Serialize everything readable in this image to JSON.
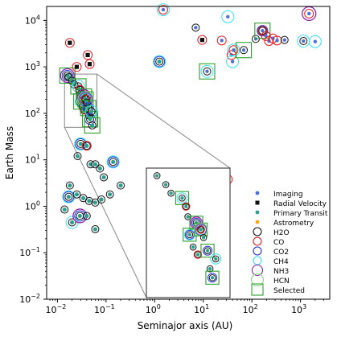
{
  "chart_data": {
    "type": "scatter",
    "title": "",
    "xlabel": "Seminajor axis (AU)",
    "ylabel": "Earth Mass",
    "x_scale": "log",
    "y_scale": "log",
    "xlim": [
      0.006,
      4000
    ],
    "ylim": [
      0.01,
      20000
    ],
    "x_ticks": [
      {
        "value": 0.01,
        "label": "10",
        "exp": "−2"
      },
      {
        "value": 0.1,
        "label": "10",
        "exp": "−1"
      },
      {
        "value": 1,
        "label": "10",
        "exp": "0"
      },
      {
        "value": 10,
        "label": "10",
        "exp": "1"
      },
      {
        "value": 100,
        "label": "10",
        "exp": "2"
      },
      {
        "value": 1000,
        "label": "10",
        "exp": "3"
      }
    ],
    "y_ticks": [
      {
        "value": 0.01,
        "label": "10",
        "exp": "−2"
      },
      {
        "value": 0.1,
        "label": "10",
        "exp": "−1"
      },
      {
        "value": 1,
        "label": "10",
        "exp": "0"
      },
      {
        "value": 10,
        "label": "10",
        "exp": "1"
      },
      {
        "value": 100,
        "label": "10",
        "exp": "2"
      },
      {
        "value": 1000,
        "label": "10",
        "exp": "3"
      },
      {
        "value": 10000,
        "label": "10",
        "exp": "4"
      }
    ],
    "grid": false,
    "legend_position": "lower-right",
    "colors": {
      "Imaging": "#4d6fd8",
      "Radial Velocity": "#111111",
      "Primary Transit": "#2f9e8f",
      "Astrometry": "#f5a623",
      "H2O": "#111111",
      "CO": "#e31a1c",
      "CO2": "#1f2bd6",
      "CH4": "#33e0f0",
      "NH3": "#8e24aa",
      "HCN": "#7fe07f",
      "Selected": "#2ca02c"
    },
    "legend": [
      {
        "label": "Imaging",
        "kind": "method"
      },
      {
        "label": "Radial Velocity",
        "kind": "method"
      },
      {
        "label": "Primary Transit",
        "kind": "method"
      },
      {
        "label": "Astrometry",
        "kind": "method"
      },
      {
        "label": "H2O",
        "kind": "molecule"
      },
      {
        "label": "CO",
        "kind": "molecule"
      },
      {
        "label": "CO2",
        "kind": "molecule"
      },
      {
        "label": "CH4",
        "kind": "molecule"
      },
      {
        "label": "NH3",
        "kind": "molecule"
      },
      {
        "label": "HCN",
        "kind": "molecule"
      },
      {
        "label": "Selected",
        "kind": "selected"
      }
    ],
    "inset": {
      "x_range": [
        0.014,
        0.065
      ],
      "y_range": [
        50,
        700
      ]
    },
    "points": [
      {
        "x": 0.016,
        "y": 650,
        "method": "Primary Transit",
        "rings": [
          "H2O",
          "CO2",
          "NH3"
        ],
        "selected": true
      },
      {
        "x": 0.017,
        "y": 600,
        "method": "Primary Transit",
        "rings": [
          "H2O"
        ],
        "selected": false
      },
      {
        "x": 0.018,
        "y": 3300,
        "method": "Radial Velocity",
        "rings": [
          "CO"
        ],
        "selected": false
      },
      {
        "x": 0.02,
        "y": 500,
        "method": "Primary Transit",
        "rings": [
          "H2O"
        ],
        "selected": false
      },
      {
        "x": 0.022,
        "y": 420,
        "method": "Primary Transit",
        "rings": [
          "H2O"
        ],
        "selected": false
      },
      {
        "x": 0.025,
        "y": 1000,
        "method": "Radial Velocity",
        "rings": [
          "CO"
        ],
        "selected": false
      },
      {
        "x": 0.027,
        "y": 380,
        "method": "Primary Transit",
        "rings": [
          "H2O",
          "CH4"
        ],
        "selected": true
      },
      {
        "x": 0.029,
        "y": 320,
        "method": "Primary Transit",
        "rings": [
          "H2O",
          "CO"
        ],
        "selected": false
      },
      {
        "x": 0.03,
        "y": 260,
        "method": "Primary Transit",
        "rings": [
          "H2O"
        ],
        "selected": false
      },
      {
        "x": 0.031,
        "y": 180,
        "method": "Primary Transit",
        "rings": [
          "H2O",
          "CO2",
          "CH4"
        ],
        "selected": true
      },
      {
        "x": 0.033,
        "y": 140,
        "method": "Primary Transit",
        "rings": [
          "H2O"
        ],
        "selected": false
      },
      {
        "x": 0.035,
        "y": 230,
        "method": "Primary Transit",
        "rings": [
          "H2O",
          "CO2",
          "NH3"
        ],
        "selected": true
      },
      {
        "x": 0.036,
        "y": 120,
        "method": "Primary Transit",
        "rings": [
          "H2O",
          "CO"
        ],
        "selected": false
      },
      {
        "x": 0.038,
        "y": 200,
        "method": "Primary Transit",
        "rings": [
          "H2O",
          "CO",
          "CH4",
          "NH3",
          "HCN"
        ],
        "selected": true
      },
      {
        "x": 0.04,
        "y": 170,
        "method": "Primary Transit",
        "rings": [
          "H2O"
        ],
        "selected": false
      },
      {
        "x": 0.042,
        "y": 1800,
        "method": "Radial Velocity",
        "rings": [
          "CO"
        ],
        "selected": false
      },
      {
        "x": 0.043,
        "y": 130,
        "method": "Primary Transit",
        "rings": [
          "H2O",
          "CO2"
        ],
        "selected": true
      },
      {
        "x": 0.045,
        "y": 90,
        "method": "Primary Transit",
        "rings": [
          "H2O"
        ],
        "selected": false
      },
      {
        "x": 0.046,
        "y": 1150,
        "method": "Radial Velocity",
        "rings": [
          "CO"
        ],
        "selected": false
      },
      {
        "x": 0.047,
        "y": 75,
        "method": "Primary Transit",
        "rings": [
          "H2O",
          "CO2"
        ],
        "selected": true
      },
      {
        "x": 0.05,
        "y": 110,
        "method": "Primary Transit",
        "rings": [
          "H2O",
          "CH4"
        ],
        "selected": false
      },
      {
        "x": 0.052,
        "y": 55,
        "method": "Primary Transit",
        "rings": [
          "H2O"
        ],
        "selected": true
      },
      {
        "x": 0.03,
        "y": 22,
        "method": "Primary Transit",
        "rings": [
          "H2O",
          "CO2",
          "CH4"
        ],
        "selected": false
      },
      {
        "x": 0.04,
        "y": 20,
        "method": "Primary Transit",
        "rings": [
          "H2O",
          "CO"
        ],
        "selected": false
      },
      {
        "x": 0.026,
        "y": 12,
        "method": "Primary Transit",
        "rings": [
          "H2O"
        ],
        "selected": false
      },
      {
        "x": 0.048,
        "y": 8,
        "method": "Primary Transit",
        "rings": [
          "H2O"
        ],
        "selected": false
      },
      {
        "x": 0.06,
        "y": 8,
        "method": "Primary Transit",
        "rings": [
          "H2O"
        ],
        "selected": false
      },
      {
        "x": 0.075,
        "y": 6.5,
        "method": "Primary Transit",
        "rings": [
          "H2O"
        ],
        "selected": false
      },
      {
        "x": 0.14,
        "y": 9,
        "method": "Primary Transit",
        "rings": [
          "H2O",
          "CO2",
          "CH4"
        ],
        "selected": false
      },
      {
        "x": 0.09,
        "y": 4.2,
        "method": "Primary Transit",
        "rings": [
          "H2O"
        ],
        "selected": false
      },
      {
        "x": 0.018,
        "y": 2.8,
        "method": "Primary Transit",
        "rings": [
          "H2O"
        ],
        "selected": false
      },
      {
        "x": 0.017,
        "y": 1.6,
        "method": "Primary Transit",
        "rings": [
          "H2O",
          "CO2",
          "CH4"
        ],
        "selected": false
      },
      {
        "x": 0.025,
        "y": 1.8,
        "method": "Primary Transit",
        "rings": [
          "H2O"
        ],
        "selected": false
      },
      {
        "x": 0.034,
        "y": 1.5,
        "method": "Primary Transit",
        "rings": [
          "H2O"
        ],
        "selected": false
      },
      {
        "x": 0.045,
        "y": 1.3,
        "method": "Primary Transit",
        "rings": [
          "H2O"
        ],
        "selected": false
      },
      {
        "x": 0.06,
        "y": 1.2,
        "method": "Primary Transit",
        "rings": [
          "H2O"
        ],
        "selected": false
      },
      {
        "x": 0.08,
        "y": 1.4,
        "method": "Primary Transit",
        "rings": [
          "H2O"
        ],
        "selected": false
      },
      {
        "x": 0.12,
        "y": 1.8,
        "method": "Primary Transit",
        "rings": [
          "H2O"
        ],
        "selected": false
      },
      {
        "x": 0.2,
        "y": 2.8,
        "method": "Primary Transit",
        "rings": [
          "H2O"
        ],
        "selected": false
      },
      {
        "x": 0.014,
        "y": 0.85,
        "method": "Primary Transit",
        "rings": [
          "H2O"
        ],
        "selected": false
      },
      {
        "x": 0.02,
        "y": 0.45,
        "method": "Primary Transit",
        "rings": [
          "H2O",
          "CH4"
        ],
        "selected": false
      },
      {
        "x": 0.029,
        "y": 0.62,
        "method": "Primary Transit",
        "rings": [
          "H2O",
          "CO2",
          "NH3"
        ],
        "selected": false
      },
      {
        "x": 0.04,
        "y": 0.62,
        "method": "Primary Transit",
        "rings": [
          "H2O"
        ],
        "selected": false
      },
      {
        "x": 0.06,
        "y": 0.32,
        "method": "Primary Transit",
        "rings": [
          "H2O"
        ],
        "selected": false
      },
      {
        "x": 1.25,
        "y": 1300,
        "method": "Primary Transit",
        "rings": [
          "H2O",
          "CO2",
          "CH4"
        ],
        "selected": false
      },
      {
        "x": 1.5,
        "y": 17000,
        "method": "Imaging",
        "rings": [
          "CO",
          "CH4"
        ],
        "selected": false
      },
      {
        "x": 7.0,
        "y": 7000,
        "method": "Imaging",
        "rings": [
          "H2O"
        ],
        "selected": false
      },
      {
        "x": 9.5,
        "y": 3800,
        "method": "Radial Velocity",
        "rings": [
          "CO"
        ],
        "selected": false
      },
      {
        "x": 12.0,
        "y": 800,
        "method": "Imaging",
        "rings": [
          "H2O",
          "CH4"
        ],
        "selected": true
      },
      {
        "x": 24.0,
        "y": 3700,
        "method": "Imaging",
        "rings": [
          "CO"
        ],
        "selected": false
      },
      {
        "x": 32.0,
        "y": 12000,
        "method": "Imaging",
        "rings": [
          "CH4"
        ],
        "selected": false
      },
      {
        "x": 38.0,
        "y": 1800,
        "method": "Imaging",
        "rings": [
          "CO"
        ],
        "selected": false
      },
      {
        "x": 40.0,
        "y": 1300,
        "method": "Imaging",
        "rings": [
          "CH4"
        ],
        "selected": false
      },
      {
        "x": 42.0,
        "y": 2300,
        "method": "Imaging",
        "rings": [
          "CO",
          "CH4"
        ],
        "selected": false
      },
      {
        "x": 68.0,
        "y": 2300,
        "method": "Imaging",
        "rings": [
          "H2O"
        ],
        "selected": true
      },
      {
        "x": 120.0,
        "y": 4000,
        "method": "Imaging",
        "rings": [
          "H2O"
        ],
        "selected": false
      },
      {
        "x": 165.0,
        "y": 6000,
        "method": "Imaging",
        "rings": [
          "H2O",
          "CO",
          "CO2"
        ],
        "selected": true
      },
      {
        "x": 195.0,
        "y": 4600,
        "method": "Imaging",
        "rings": [
          "CO"
        ],
        "selected": false
      },
      {
        "x": 225.0,
        "y": 3600,
        "method": "Imaging",
        "rings": [
          "CO"
        ],
        "selected": false
      },
      {
        "x": 270.0,
        "y": 4100,
        "method": "Imaging",
        "rings": [
          "CO"
        ],
        "selected": false
      },
      {
        "x": 330.0,
        "y": 3700,
        "method": "Imaging",
        "rings": [
          "CO"
        ],
        "selected": false
      },
      {
        "x": 470.0,
        "y": 3800,
        "method": "Imaging",
        "rings": [
          "H2O"
        ],
        "selected": false
      },
      {
        "x": 1500.0,
        "y": 14000,
        "method": "Imaging",
        "rings": [
          "CO",
          "NH3"
        ],
        "selected": false
      },
      {
        "x": 1150.0,
        "y": 3600,
        "method": "Imaging",
        "rings": [
          "H2O",
          "CH4"
        ],
        "selected": false
      },
      {
        "x": 2000.0,
        "y": 3500,
        "method": "Imaging",
        "rings": [
          "CH4"
        ],
        "selected": false
      },
      {
        "x": 32.0,
        "y": 3.8,
        "method": "Radial Velocity",
        "rings": [
          "CO"
        ],
        "selected": false
      }
    ]
  }
}
